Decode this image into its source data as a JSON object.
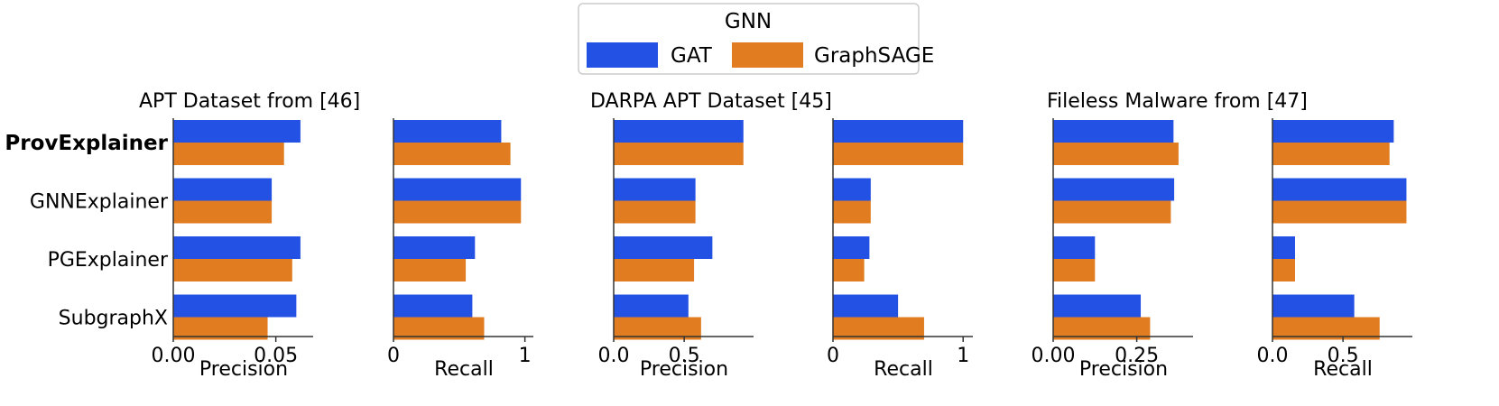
{
  "chart_data": {
    "type": "bar",
    "orientation": "horizontal",
    "legend": {
      "title": "GNN",
      "placement": "top-center",
      "entries": [
        {
          "name": "GAT",
          "color": "#2351e4"
        },
        {
          "name": "GraphSAGE",
          "color": "#e17d20"
        }
      ]
    },
    "categories": [
      "ProvExplainer",
      "GNNExplainer",
      "PGExplainer",
      "SubgraphX"
    ],
    "highlighted_category": "ProvExplainer",
    "groups": [
      {
        "title": "APT Dataset from [46]"
      },
      {
        "title": "DARPA APT Dataset [45]"
      },
      {
        "title": "Fileless Malware from [47]"
      }
    ],
    "panels": [
      {
        "group": 0,
        "xlabel": "Precision",
        "xlim": [
          0,
          0.066
        ],
        "ticks": [
          0,
          0.05
        ],
        "tick_labels": [
          "0.00",
          "0.05"
        ],
        "series": [
          {
            "name": "GAT",
            "values": [
              0.062,
              0.048,
              0.062,
              0.06
            ]
          },
          {
            "name": "GraphSAGE",
            "values": [
              0.054,
              0.048,
              0.058,
              0.046
            ]
          }
        ]
      },
      {
        "group": 0,
        "xlabel": "Recall",
        "xlim": [
          0,
          1.03
        ],
        "ticks": [
          0,
          1
        ],
        "tick_labels": [
          "0",
          "1"
        ],
        "series": [
          {
            "name": "GAT",
            "values": [
              0.82,
              0.97,
              0.62,
              0.6
            ]
          },
          {
            "name": "GraphSAGE",
            "values": [
              0.89,
              0.97,
              0.55,
              0.69
            ]
          }
        ]
      },
      {
        "group": 1,
        "xlabel": "Precision",
        "xlim": [
          0,
          0.96
        ],
        "ticks": [
          0,
          0.5
        ],
        "tick_labels": [
          "0.0",
          "0.5"
        ],
        "series": [
          {
            "name": "GAT",
            "values": [
              0.92,
              0.58,
              0.7,
              0.53
            ]
          },
          {
            "name": "GraphSAGE",
            "values": [
              0.92,
              0.58,
              0.57,
              0.62
            ]
          }
        ]
      },
      {
        "group": 1,
        "xlabel": "Recall",
        "xlim": [
          0,
          1.04
        ],
        "ticks": [
          0,
          1
        ],
        "tick_labels": [
          "0",
          "1"
        ],
        "series": [
          {
            "name": "GAT",
            "values": [
              1.0,
              0.29,
              0.28,
              0.5
            ]
          },
          {
            "name": "GraphSAGE",
            "values": [
              1.0,
              0.29,
              0.24,
              0.7
            ]
          }
        ]
      },
      {
        "group": 2,
        "xlabel": "Precision",
        "xlim": [
          0,
          0.405
        ],
        "ticks": [
          0,
          0.25
        ],
        "tick_labels": [
          "0.00",
          "0.25"
        ],
        "series": [
          {
            "name": "GAT",
            "values": [
              0.36,
              0.362,
              0.125,
              0.262
            ]
          },
          {
            "name": "GraphSAGE",
            "values": [
              0.375,
              0.352,
              0.125,
              0.29
            ]
          }
        ]
      },
      {
        "group": 2,
        "xlabel": "Recall",
        "xlim": [
          0,
          0.96
        ],
        "ticks": [
          0,
          0.5
        ],
        "tick_labels": [
          "0.0",
          "0.5"
        ],
        "series": [
          {
            "name": "GAT",
            "values": [
              0.86,
              0.95,
              0.16,
              0.58
            ]
          },
          {
            "name": "GraphSAGE",
            "values": [
              0.83,
              0.95,
              0.16,
              0.76
            ]
          }
        ]
      }
    ]
  }
}
